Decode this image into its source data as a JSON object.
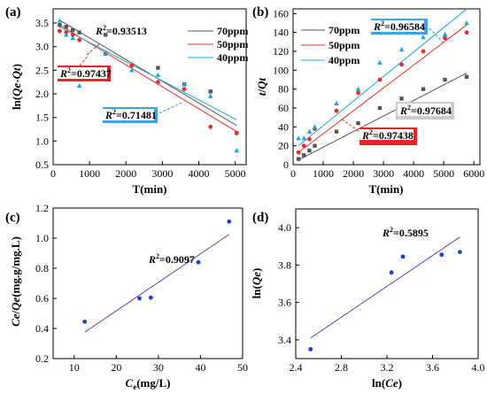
{
  "chart_data": [
    {
      "panel": "(a)",
      "type": "scatter",
      "xlabel": "T(min)",
      "ylabel": "ln(Qe-Qt)",
      "xlim": [
        0,
        5300
      ],
      "ylim": [
        0.5,
        3.8
      ],
      "xticks": [
        0,
        1000,
        2000,
        3000,
        4000,
        5000
      ],
      "yticks": [
        0.5,
        1.0,
        1.5,
        2.0,
        2.5,
        3.0,
        3.5
      ],
      "legend": [
        "70ppm",
        "50ppm",
        "40ppm"
      ],
      "series": [
        {
          "name": "70ppm",
          "color": "#555555",
          "marker": "square",
          "x": [
            180,
            360,
            540,
            720,
            1440,
            2880,
            3600,
            4320,
            5040
          ],
          "y": [
            3.46,
            3.42,
            3.35,
            3.3,
            3.25,
            2.55,
            2.2,
            2.05,
            1.17
          ],
          "fit": [
            [
              180,
              3.56
            ],
            [
              5040,
              1.33
            ]
          ]
        },
        {
          "name": "50ppm",
          "color": "#e8302a",
          "marker": "circle",
          "x": [
            180,
            360,
            540,
            720,
            1440,
            2160,
            2880,
            3600,
            4320,
            5040
          ],
          "y": [
            3.33,
            3.3,
            3.25,
            3.14,
            2.85,
            2.6,
            2.25,
            2.1,
            1.3,
            1.17
          ],
          "fit": [
            [
              180,
              3.46
            ],
            [
              5040,
              1.2
            ]
          ]
        },
        {
          "name": "40ppm",
          "color": "#1ea5dc",
          "marker": "triangle",
          "x": [
            180,
            360,
            540,
            720,
            1440,
            2160,
            2880,
            3600,
            4320,
            5040
          ],
          "y": [
            3.55,
            3.25,
            3.18,
            2.17,
            2.85,
            2.5,
            2.4,
            2.2,
            1.95,
            0.8
          ],
          "fit": [
            [
              180,
              3.42
            ],
            [
              5040,
              1.45
            ]
          ]
        }
      ],
      "annotations": [
        {
          "r2": "0.93513",
          "color": "#555555",
          "box": ""
        },
        {
          "r2": "0.97437",
          "color": "#e8302a",
          "box": "#ee2222"
        },
        {
          "r2": "0.71481",
          "color": "#1ea5dc",
          "box": "#39a5ec"
        }
      ]
    },
    {
      "panel": "(b)",
      "type": "scatter",
      "xlabel": "T(min)",
      "ylabel": "t/Qt",
      "xlim": [
        0,
        6200
      ],
      "ylim": [
        0,
        165
      ],
      "xticks": [
        0,
        1000,
        2000,
        3000,
        4000,
        5000,
        6000
      ],
      "yticks": [
        0,
        20,
        40,
        60,
        80,
        100,
        120,
        140,
        160
      ],
      "legend": [
        "70ppm",
        "50ppm",
        "40ppm"
      ],
      "series": [
        {
          "name": "70ppm",
          "color": "#555555",
          "marker": "square",
          "x": [
            180,
            360,
            540,
            720,
            1440,
            2160,
            2880,
            3600,
            4320,
            5040,
            5760
          ],
          "y": [
            6,
            10,
            15,
            20,
            35,
            44,
            60,
            70,
            80,
            90,
            93
          ],
          "fit": [
            [
              180,
              5
            ],
            [
              5760,
              97
            ]
          ]
        },
        {
          "name": "50ppm",
          "color": "#e8302a",
          "marker": "circle",
          "x": [
            180,
            360,
            540,
            720,
            1440,
            2160,
            2880,
            3600,
            4320,
            5040,
            5760
          ],
          "y": [
            13,
            20,
            27,
            38,
            57,
            76,
            90,
            106,
            120,
            134,
            140
          ],
          "fit": [
            [
              180,
              13
            ],
            [
              5760,
              148
            ]
          ]
        },
        {
          "name": "40ppm",
          "color": "#1ea5dc",
          "marker": "triangle",
          "x": [
            180,
            360,
            540,
            720,
            1440,
            2160,
            2880,
            3600,
            4320,
            5040,
            5760
          ],
          "y": [
            28,
            28,
            35,
            40,
            65,
            80,
            108,
            122,
            135,
            138,
            150
          ],
          "fit": [
            [
              180,
              20
            ],
            [
              5760,
              165
            ]
          ]
        }
      ],
      "annotations": [
        {
          "r2": "0.96584",
          "color": "#1ea5dc",
          "box": "#39a5ec"
        },
        {
          "r2": "0.97684",
          "color": "#555555",
          "box": "#cccccc"
        },
        {
          "r2": "0.97438",
          "color": "#e8302a",
          "box": "#ee2222"
        }
      ]
    },
    {
      "panel": "(c)",
      "type": "scatter",
      "xlabel": "Ce(mg/L)",
      "ylabel": "Ce/Qe(mg.g/mg.L)",
      "xlim": [
        5,
        50
      ],
      "ylim": [
        0.2,
        1.2
      ],
      "xticks": [
        10,
        20,
        30,
        40,
        50
      ],
      "yticks": [
        0.2,
        0.4,
        0.6,
        0.8,
        1.0,
        1.2
      ],
      "series": [
        {
          "color": "#1f3fc6",
          "marker": "circle",
          "x": [
            12.5,
            25.5,
            28.2,
            39.5,
            46.8
          ],
          "y": [
            0.445,
            0.6,
            0.605,
            0.84,
            1.11
          ],
          "fit": [
            [
              12.5,
              0.375
            ],
            [
              46.8,
              1.025
            ]
          ]
        }
      ],
      "annotations": [
        {
          "r2": "0.9097"
        }
      ]
    },
    {
      "panel": "(d)",
      "type": "scatter",
      "xlabel": "ln(Ce)",
      "ylabel": "ln(Qe)",
      "xlim": [
        2.4,
        4.0
      ],
      "ylim": [
        3.3,
        4.1
      ],
      "xticks": [
        2.4,
        2.8,
        3.2,
        3.6,
        4.0
      ],
      "yticks": [
        3.4,
        3.6,
        3.8,
        4.0
      ],
      "series": [
        {
          "color": "#1f3fc6",
          "marker": "circle",
          "x": [
            2.53,
            3.24,
            3.34,
            3.68,
            3.84
          ],
          "y": [
            3.35,
            3.76,
            3.845,
            3.855,
            3.87
          ],
          "fit": [
            [
              2.53,
              3.41
            ],
            [
              3.84,
              3.95
            ]
          ]
        }
      ],
      "annotations": [
        {
          "r2": "0.5895"
        }
      ]
    }
  ]
}
